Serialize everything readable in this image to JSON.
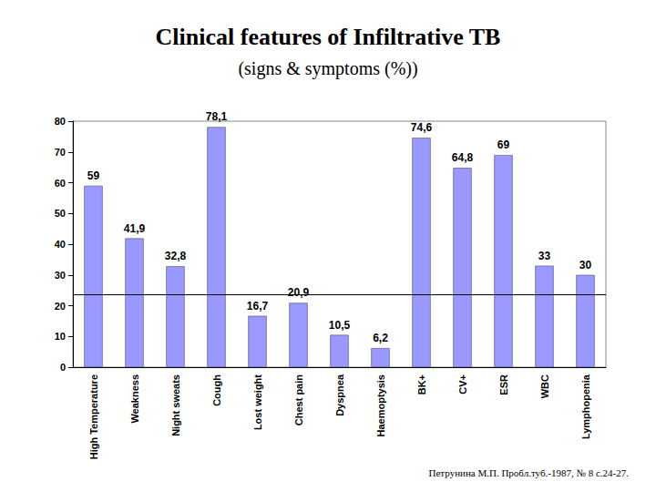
{
  "chart_data": {
    "type": "bar",
    "title": "Clinical features of Infiltrative TB",
    "subtitle": "(signs & symptoms (%))",
    "source": "Петрунина М.П. Пробл.туб.-1987, № 8 с.24-27.",
    "categories": [
      "High Temperature",
      "Weakness",
      "Night sweats",
      "Cough",
      "Lost weight",
      "Chest pain",
      "Dyspnea",
      "Haemoptysis",
      "BK+",
      "CV+",
      "ESR",
      "WBC",
      "Lymphopenia"
    ],
    "values": [
      59,
      41.9,
      32.8,
      78.1,
      16.7,
      20.9,
      10.5,
      6.2,
      74.6,
      64.8,
      69,
      33,
      30
    ],
    "value_labels": [
      "59",
      "41,9",
      "32,8",
      "78,1",
      "16,7",
      "20,9",
      "10,5",
      "6,2",
      "74,6",
      "64,8",
      "69",
      "33",
      "30"
    ],
    "color": "#9999ff",
    "reference_line": 23.5,
    "ylim": [
      0,
      80
    ],
    "yticks": [
      0,
      10,
      20,
      30,
      40,
      50,
      60,
      70,
      80
    ],
    "grid": false,
    "data_labels": true
  }
}
